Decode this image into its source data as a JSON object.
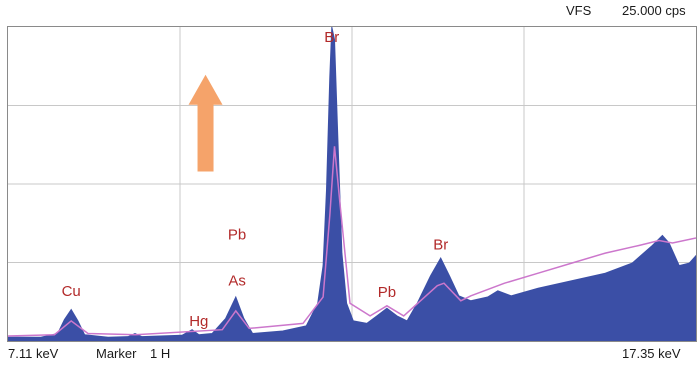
{
  "header": {
    "vfs_label": "VFS",
    "vfs_value": "25.000 cps"
  },
  "footer": {
    "x_start": "7.11 keV",
    "marker_label": "Marker",
    "marker_value": "1 H",
    "x_end": "17.35 keV"
  },
  "chart_data": {
    "type": "area",
    "title": "",
    "xlabel": "",
    "ylabel": "",
    "xlim": [
      7.11,
      17.35
    ],
    "ylim": [
      0,
      25.0
    ],
    "grid": true,
    "colors": {
      "filled": "#3b4fa6",
      "overlay": "#cc77cc",
      "labels": "#b22a2a",
      "arrow": "#f5a36a"
    },
    "series": [
      {
        "values": [
          [
            7.11,
            0.3
          ],
          [
            7.6,
            0.3
          ],
          [
            7.85,
            0.6
          ],
          [
            7.95,
            1.7
          ],
          [
            8.05,
            2.5
          ],
          [
            8.15,
            1.6
          ],
          [
            8.25,
            0.5
          ],
          [
            8.6,
            0.3
          ],
          [
            8.9,
            0.35
          ],
          [
            9.0,
            0.6
          ],
          [
            9.1,
            0.35
          ],
          [
            9.7,
            0.45
          ],
          [
            9.85,
            0.9
          ],
          [
            9.95,
            0.5
          ],
          [
            10.15,
            0.6
          ],
          [
            10.35,
            1.8
          ],
          [
            10.5,
            3.5
          ],
          [
            10.62,
            1.8
          ],
          [
            10.75,
            0.6
          ],
          [
            11.2,
            0.8
          ],
          [
            11.55,
            1.2
          ],
          [
            11.72,
            3.0
          ],
          [
            11.8,
            6.0
          ],
          [
            11.85,
            12.0
          ],
          [
            11.9,
            21.0
          ],
          [
            11.93,
            25.0
          ],
          [
            11.97,
            24.0
          ],
          [
            12.02,
            16.0
          ],
          [
            12.08,
            7.0
          ],
          [
            12.15,
            3.0
          ],
          [
            12.25,
            1.6
          ],
          [
            12.45,
            1.4
          ],
          [
            12.6,
            2.0
          ],
          [
            12.75,
            2.6
          ],
          [
            12.9,
            2.0
          ],
          [
            13.05,
            1.6
          ],
          [
            13.2,
            3.0
          ],
          [
            13.4,
            5.2
          ],
          [
            13.55,
            6.6
          ],
          [
            13.68,
            5.2
          ],
          [
            13.82,
            3.6
          ],
          [
            14.0,
            3.2
          ],
          [
            14.25,
            3.5
          ],
          [
            14.4,
            4.0
          ],
          [
            14.6,
            3.6
          ],
          [
            15.0,
            4.2
          ],
          [
            15.5,
            4.8
          ],
          [
            16.0,
            5.4
          ],
          [
            16.4,
            6.2
          ],
          [
            16.7,
            7.6
          ],
          [
            16.85,
            8.4
          ],
          [
            16.95,
            7.8
          ],
          [
            17.1,
            6.0
          ],
          [
            17.25,
            6.2
          ],
          [
            17.35,
            6.8
          ]
        ]
      },
      {
        "values": [
          [
            7.11,
            0.4
          ],
          [
            7.8,
            0.5
          ],
          [
            8.05,
            1.6
          ],
          [
            8.3,
            0.6
          ],
          [
            9.0,
            0.5
          ],
          [
            10.3,
            0.9
          ],
          [
            10.5,
            2.4
          ],
          [
            10.7,
            1.0
          ],
          [
            11.5,
            1.4
          ],
          [
            11.8,
            3.5
          ],
          [
            11.9,
            10.0
          ],
          [
            11.97,
            15.5
          ],
          [
            12.05,
            11.0
          ],
          [
            12.2,
            3.0
          ],
          [
            12.5,
            2.0
          ],
          [
            12.75,
            2.8
          ],
          [
            13.0,
            2.0
          ],
          [
            13.5,
            4.4
          ],
          [
            13.6,
            4.6
          ],
          [
            13.85,
            3.2
          ],
          [
            14.0,
            3.6
          ],
          [
            14.5,
            4.6
          ],
          [
            15.0,
            5.4
          ],
          [
            15.5,
            6.2
          ],
          [
            16.0,
            7.0
          ],
          [
            16.5,
            7.6
          ],
          [
            16.8,
            8.0
          ],
          [
            17.0,
            7.8
          ],
          [
            17.35,
            8.2
          ]
        ]
      }
    ],
    "annotations": [
      {
        "text": "Cu",
        "x": 8.05,
        "y": 3.6
      },
      {
        "text": "Hg",
        "x": 9.95,
        "y": 1.2
      },
      {
        "text": "As",
        "x": 10.52,
        "y": 4.4
      },
      {
        "text": "Pb",
        "x": 10.52,
        "y": 8.1
      },
      {
        "text": "Br",
        "x": 11.93,
        "y": 23.8
      },
      {
        "text": "Pb",
        "x": 12.75,
        "y": 3.5
      },
      {
        "text": "Br",
        "x": 13.55,
        "y": 7.3
      }
    ],
    "arrow": {
      "x": 10.05,
      "y_from": 13.5,
      "y_to": 21.2
    }
  }
}
